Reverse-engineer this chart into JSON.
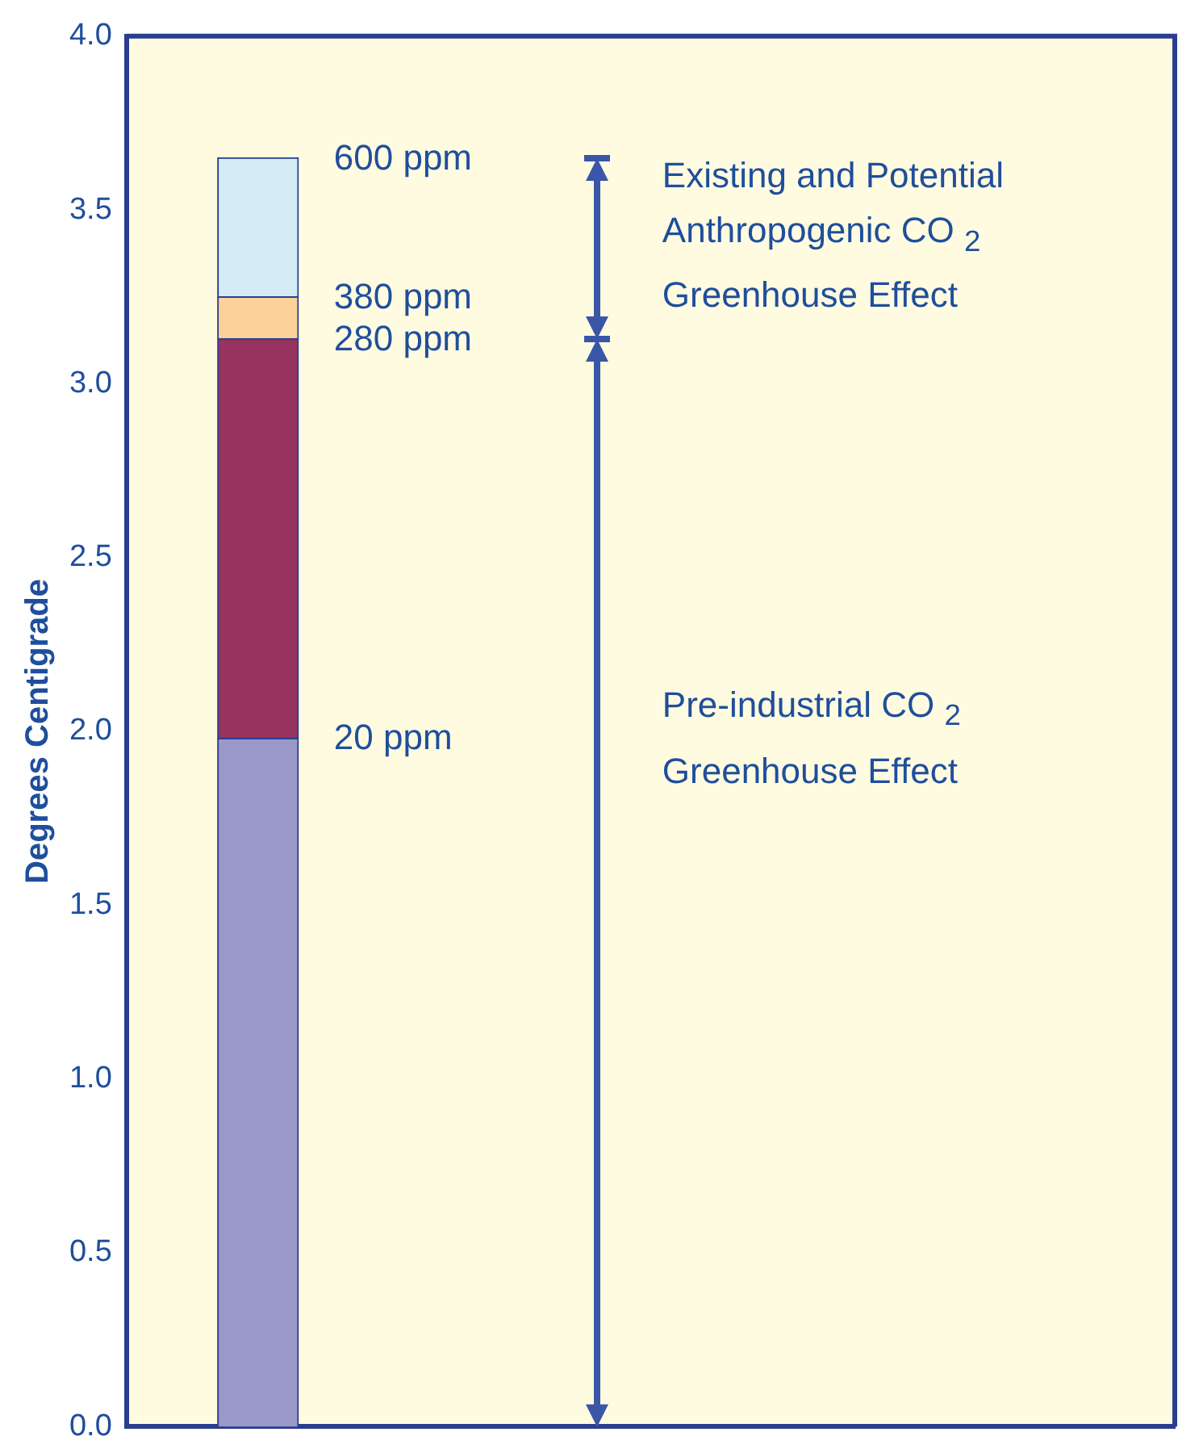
{
  "chart_data": {
    "type": "bar",
    "ylabel": "Degrees Centigrade",
    "categories": [
      null
    ],
    "stacked": true,
    "series": [
      {
        "color": "#9a99c9",
        "values": [
          1.98
        ]
      },
      {
        "color": "#97335e",
        "values": [
          1.15
        ]
      },
      {
        "color": "#fdd29a",
        "values": [
          0.12
        ]
      },
      {
        "color": "#d4ecf5",
        "values": [
          0.4
        ]
      }
    ],
    "ylim": [
      0,
      4
    ],
    "yticks": [
      {
        "value": 0,
        "label": "0.0"
      },
      {
        "value": 0.5,
        "label": "0.5"
      },
      {
        "value": 1,
        "label": "1.0"
      },
      {
        "value": 1.5,
        "label": "1.5"
      },
      {
        "value": 2,
        "label": "2.0"
      },
      {
        "value": 2.5,
        "label": "2.5"
      },
      {
        "value": 3,
        "label": "3.0"
      },
      {
        "value": 3.5,
        "label": "3.5"
      },
      {
        "value": 4,
        "label": "4.0"
      }
    ],
    "annotations": [
      "20 ppm",
      "280 ppm",
      "380 ppm",
      "600 ppm",
      "Pre-industrial CO $_{2}$ Greenhouse Effect",
      "Existing and Potential Anthropogenic CO $_{2}$ Greenhouse Effect"
    ]
  }
}
